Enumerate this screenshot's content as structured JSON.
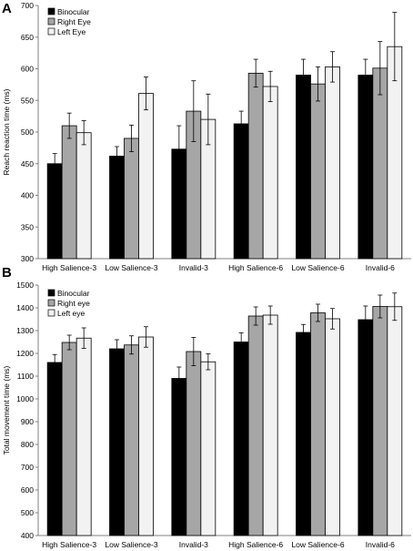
{
  "chart_data": [
    {
      "type": "bar",
      "panel_label": "A",
      "title": "",
      "xlabel": "",
      "ylabel": "Reach reaction time (ms)",
      "ylim": [
        300,
        700
      ],
      "yticks": [
        300,
        350,
        400,
        450,
        500,
        550,
        600,
        650,
        700
      ],
      "grid": false,
      "legend_position": "top-left",
      "categories": [
        "High Salience-3",
        "Low Salience-3",
        "Invalid-3",
        "High Salience-6",
        "Low Salience-6",
        "Invalid-6"
      ],
      "series": [
        {
          "name": "Binocular",
          "color": "#000000",
          "values": [
            450,
            462,
            473,
            513,
            590,
            590
          ],
          "errors": [
            16,
            15,
            37,
            20,
            25,
            25
          ]
        },
        {
          "name": "Right Eye",
          "color": "#a6a6a6",
          "values": [
            510,
            490,
            533,
            593,
            576,
            601
          ],
          "errors": [
            20,
            21,
            48,
            22,
            27,
            42
          ]
        },
        {
          "name": "Left Eye",
          "color": "#f2f2f2",
          "values": [
            499,
            561,
            520,
            572,
            603,
            635
          ],
          "errors": [
            19,
            26,
            40,
            24,
            24,
            54
          ]
        }
      ]
    },
    {
      "type": "bar",
      "panel_label": "B",
      "title": "",
      "xlabel": "",
      "ylabel": "Total movement time (ms)",
      "ylim": [
        400,
        1500
      ],
      "yticks": [
        400,
        500,
        600,
        700,
        800,
        900,
        1000,
        1100,
        1200,
        1300,
        1400,
        1500
      ],
      "grid": false,
      "legend_position": "top-left",
      "categories": [
        "High Salience-3",
        "Low Salience-3",
        "Invalid-3",
        "High Salience-6",
        "Low Salience-6",
        "Invalid-6"
      ],
      "series": [
        {
          "name": "Binocular",
          "color": "#000000",
          "values": [
            1160,
            1220,
            1090,
            1250,
            1292,
            1348
          ],
          "errors": [
            35,
            40,
            50,
            40,
            35,
            60
          ]
        },
        {
          "name": "Right eye",
          "color": "#a6a6a6",
          "values": [
            1248,
            1237,
            1208,
            1364,
            1378,
            1406
          ],
          "errors": [
            32,
            40,
            62,
            40,
            38,
            50
          ]
        },
        {
          "name": "Left eye",
          "color": "#f2f2f2",
          "values": [
            1267,
            1272,
            1163,
            1368,
            1352,
            1405
          ],
          "errors": [
            45,
            45,
            35,
            40,
            45,
            60
          ]
        }
      ]
    }
  ]
}
